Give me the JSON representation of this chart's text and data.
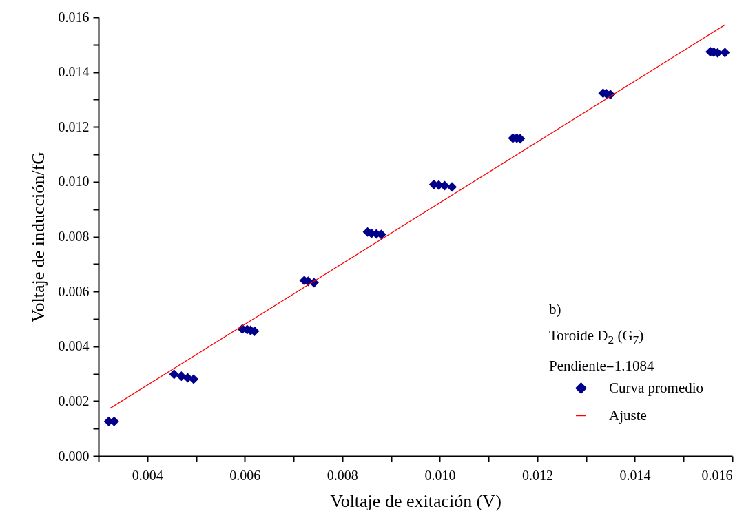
{
  "chart_data": {
    "type": "scatter",
    "xlabel": "Voltaje de exitación (V)",
    "ylabel": "Voltaje de inducción/fG",
    "annotations": [
      "b)",
      "Toroide D$_{2}$ (G$_{7}$)",
      "Pendiente=1.1084"
    ],
    "xlim": [
      0.003,
      0.016
    ],
    "ylim": [
      0,
      0.016
    ],
    "xticks": [
      {
        "value": 0.003,
        "label": null
      },
      {
        "value": 0.004,
        "label": "0.004"
      },
      {
        "value": 0.005,
        "label": null
      },
      {
        "value": 0.006,
        "label": "0.006"
      },
      {
        "value": 0.007,
        "label": null
      },
      {
        "value": 0.008,
        "label": "0.008"
      },
      {
        "value": 0.009,
        "label": null
      },
      {
        "value": 0.01,
        "label": "0.010"
      },
      {
        "value": 0.011,
        "label": null
      },
      {
        "value": 0.012,
        "label": "0.012"
      },
      {
        "value": 0.013,
        "label": null
      },
      {
        "value": 0.014,
        "label": "0.014"
      },
      {
        "value": 0.015,
        "label": null
      },
      {
        "value": 0.016,
        "label": "0.016"
      }
    ],
    "yticks": [
      {
        "value": 0,
        "label": "0.000"
      },
      {
        "value": 0.001,
        "label": null
      },
      {
        "value": 0.002,
        "label": "0.002"
      },
      {
        "value": 0.003,
        "label": null
      },
      {
        "value": 0.004,
        "label": "0.004"
      },
      {
        "value": 0.005,
        "label": null
      },
      {
        "value": 0.006,
        "label": "0.006"
      },
      {
        "value": 0.007,
        "label": null
      },
      {
        "value": 0.008,
        "label": "0.008"
      },
      {
        "value": 0.009,
        "label": null
      },
      {
        "value": 0.01,
        "label": "0.010"
      },
      {
        "value": 0.011,
        "label": null
      },
      {
        "value": 0.012,
        "label": "0.012"
      },
      {
        "value": 0.013,
        "label": null
      },
      {
        "value": 0.014,
        "label": "0.014"
      },
      {
        "value": 0.015,
        "label": null
      },
      {
        "value": 0.016,
        "label": "0.016"
      }
    ],
    "legend": "bottom right",
    "series": [
      {
        "name": "Curva promedio",
        "marker": "diamond",
        "color": "#00008b",
        "x": [
          0.00321,
          0.00332,
          0.00455,
          0.0047,
          0.00483,
          0.00495,
          0.00595,
          0.00605,
          0.00612,
          0.0062,
          0.00722,
          0.0073,
          0.00742,
          0.00852,
          0.0086,
          0.0087,
          0.0088,
          0.00988,
          0.00998,
          0.0101,
          0.01025,
          0.0115,
          0.01158,
          0.01165,
          0.01335,
          0.01342,
          0.0135,
          0.01555,
          0.01562,
          0.0157,
          0.01585
        ],
        "values": [
          0.00126,
          0.00126,
          0.00298,
          0.00291,
          0.00285,
          0.0028,
          0.00463,
          0.00461,
          0.00458,
          0.00455,
          0.0064,
          0.00637,
          0.00632,
          0.00817,
          0.00812,
          0.0081,
          0.00808,
          0.0099,
          0.00988,
          0.00986,
          0.00981,
          0.01159,
          0.01159,
          0.01157,
          0.01323,
          0.01321,
          0.01318,
          0.01474,
          0.01473,
          0.0147,
          0.01471
        ]
      },
      {
        "name": "Ajuste",
        "type": "line",
        "color": "#ff0000",
        "line_style": "solid",
        "x": [
          0.00323,
          0.01585
        ],
        "values": [
          0.00173,
          0.01572
        ]
      }
    ]
  }
}
